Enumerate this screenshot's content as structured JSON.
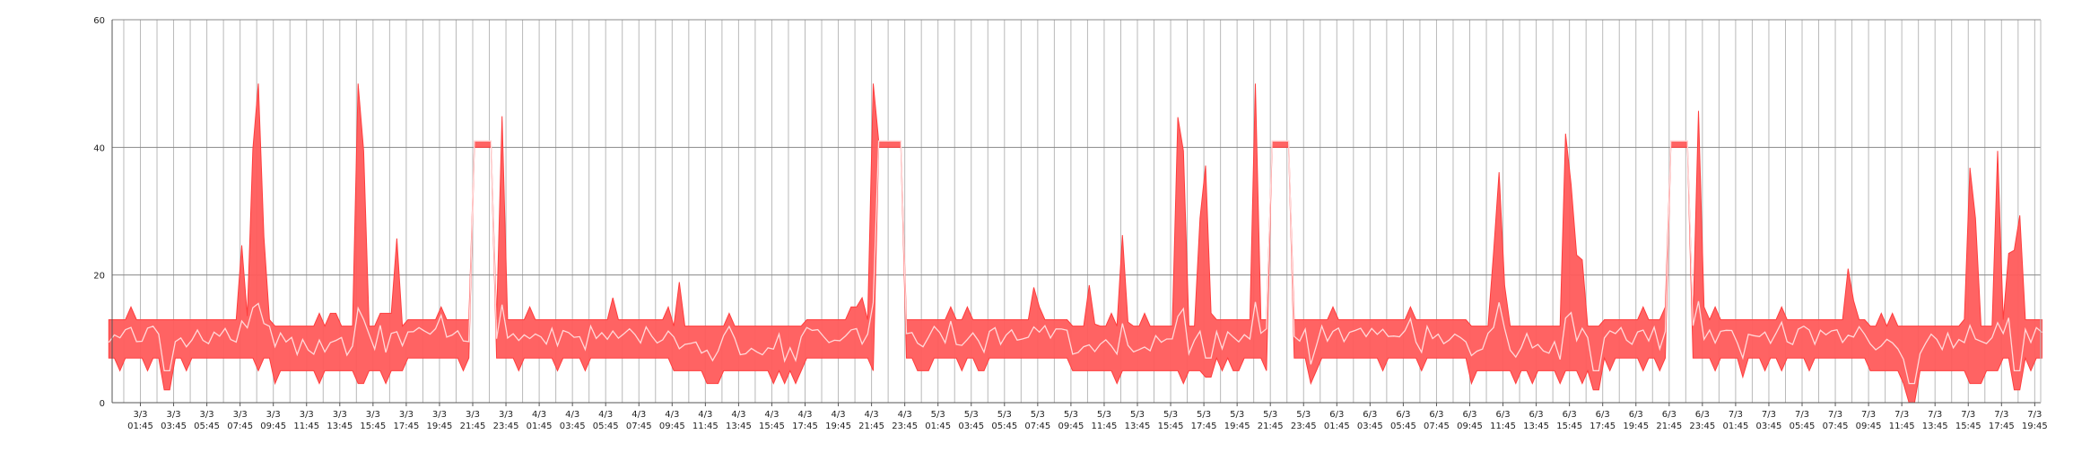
{
  "chart_data": {
    "type": "area",
    "title": "",
    "xlabel": "",
    "ylabel": "",
    "ylim": [
      0,
      60
    ],
    "y_ticks": [
      0,
      20,
      40,
      60
    ],
    "grid": "on",
    "legend": "none",
    "x_ticks": [
      {
        "date": "3/3",
        "time": "01:45"
      },
      {
        "date": "3/3",
        "time": "03:45"
      },
      {
        "date": "3/3",
        "time": "05:45"
      },
      {
        "date": "3/3",
        "time": "07:45"
      },
      {
        "date": "3/3",
        "time": "09:45"
      },
      {
        "date": "3/3",
        "time": "11:45"
      },
      {
        "date": "3/3",
        "time": "13:45"
      },
      {
        "date": "3/3",
        "time": "15:45"
      },
      {
        "date": "3/3",
        "time": "17:45"
      },
      {
        "date": "3/3",
        "time": "19:45"
      },
      {
        "date": "3/3",
        "time": "21:45"
      },
      {
        "date": "3/3",
        "time": "23:45"
      },
      {
        "date": "4/3",
        "time": "01:45"
      },
      {
        "date": "4/3",
        "time": "03:45"
      },
      {
        "date": "4/3",
        "time": "05:45"
      },
      {
        "date": "4/3",
        "time": "07:45"
      },
      {
        "date": "4/3",
        "time": "09:45"
      },
      {
        "date": "4/3",
        "time": "11:45"
      },
      {
        "date": "4/3",
        "time": "13:45"
      },
      {
        "date": "4/3",
        "time": "15:45"
      },
      {
        "date": "4/3",
        "time": "17:45"
      },
      {
        "date": "4/3",
        "time": "19:45"
      },
      {
        "date": "4/3",
        "time": "21:45"
      },
      {
        "date": "4/3",
        "time": "23:45"
      },
      {
        "date": "5/3",
        "time": "01:45"
      },
      {
        "date": "5/3",
        "time": "03:45"
      },
      {
        "date": "5/3",
        "time": "05:45"
      },
      {
        "date": "5/3",
        "time": "07:45"
      },
      {
        "date": "5/3",
        "time": "09:45"
      },
      {
        "date": "5/3",
        "time": "11:45"
      },
      {
        "date": "5/3",
        "time": "13:45"
      },
      {
        "date": "5/3",
        "time": "15:45"
      },
      {
        "date": "5/3",
        "time": "17:45"
      },
      {
        "date": "5/3",
        "time": "19:45"
      },
      {
        "date": "5/3",
        "time": "21:45"
      },
      {
        "date": "5/3",
        "time": "23:45"
      },
      {
        "date": "6/3",
        "time": "01:45"
      },
      {
        "date": "6/3",
        "time": "03:45"
      },
      {
        "date": "6/3",
        "time": "05:45"
      },
      {
        "date": "6/3",
        "time": "07:45"
      },
      {
        "date": "6/3",
        "time": "09:45"
      },
      {
        "date": "6/3",
        "time": "11:45"
      },
      {
        "date": "6/3",
        "time": "13:45"
      },
      {
        "date": "6/3",
        "time": "15:45"
      },
      {
        "date": "6/3",
        "time": "17:45"
      },
      {
        "date": "6/3",
        "time": "19:45"
      },
      {
        "date": "6/3",
        "time": "21:45"
      },
      {
        "date": "6/3",
        "time": "23:45"
      },
      {
        "date": "7/3",
        "time": "01:45"
      },
      {
        "date": "7/3",
        "time": "03:45"
      },
      {
        "date": "7/3",
        "time": "05:45"
      },
      {
        "date": "7/3",
        "time": "07:45"
      },
      {
        "date": "7/3",
        "time": "09:45"
      },
      {
        "date": "7/3",
        "time": "11:45"
      },
      {
        "date": "7/3",
        "time": "13:45"
      },
      {
        "date": "7/3",
        "time": "15:45"
      },
      {
        "date": "7/3",
        "time": "17:45"
      },
      {
        "date": "7/3",
        "time": "19:45"
      }
    ],
    "samples_per_tick": 6,
    "x_start_offset_ticks": -0.95,
    "baseline_low": 7,
    "baseline_high": 13,
    "baseline_mid": 10,
    "wide_band": {
      "low": 5,
      "high": 11
    },
    "plateaus": [
      {
        "start": 10.0,
        "end": 10.6,
        "low": 40,
        "high": 41,
        "mid": 41
      },
      {
        "start": 22.2,
        "end": 22.9,
        "low": 40,
        "high": 41,
        "mid": 41
      },
      {
        "start": 33.9,
        "end": 34.6,
        "low": 40,
        "high": 41,
        "mid": 41
      },
      {
        "start": 45.9,
        "end": 46.6,
        "low": 40,
        "high": 41,
        "mid": 41
      }
    ],
    "spikes": [
      {
        "at": 3.1,
        "high": 33
      },
      {
        "at": 3.35,
        "high": 50
      },
      {
        "at": 3.55,
        "high": 50
      },
      {
        "at": 3.75,
        "high": 31
      },
      {
        "at": 6.55,
        "high": 50
      },
      {
        "at": 6.75,
        "high": 50
      },
      {
        "at": 7.75,
        "high": 31
      },
      {
        "at": 10.9,
        "high": 50
      },
      {
        "at": 14.2,
        "high": 17
      },
      {
        "at": 16.2,
        "high": 20
      },
      {
        "at": 21.7,
        "high": 17
      },
      {
        "at": 22.05,
        "high": 50
      },
      {
        "at": 26.85,
        "high": 20
      },
      {
        "at": 28.6,
        "high": 23
      },
      {
        "at": 29.6,
        "high": 35
      },
      {
        "at": 31.2,
        "high": 50
      },
      {
        "at": 31.35,
        "high": 50
      },
      {
        "at": 31.95,
        "high": 50
      },
      {
        "at": 32.1,
        "high": 50
      },
      {
        "at": 33.55,
        "high": 50
      },
      {
        "at": 40.8,
        "high": 50
      },
      {
        "at": 40.95,
        "high": 50
      },
      {
        "at": 42.9,
        "high": 47
      },
      {
        "at": 43.1,
        "high": 50
      },
      {
        "at": 43.3,
        "high": 46
      },
      {
        "at": 46.9,
        "high": 51
      },
      {
        "at": 51.45,
        "high": 31
      },
      {
        "at": 55.0,
        "high": 50
      },
      {
        "at": 55.15,
        "high": 50
      },
      {
        "at": 55.85,
        "high": 50
      },
      {
        "at": 56.3,
        "high": 47
      },
      {
        "at": 56.5,
        "high": 41
      },
      {
        "at": 57.5,
        "high": 44
      }
    ],
    "dips": [
      {
        "at": 0.8,
        "low": 2
      },
      {
        "at": 10.2,
        "low": 5
      },
      {
        "at": 22.2,
        "low": 1
      },
      {
        "at": 32.1,
        "low": 4
      },
      {
        "at": 35.2,
        "low": 3
      },
      {
        "at": 43.8,
        "low": 2
      },
      {
        "at": 48.2,
        "low": 4
      },
      {
        "at": 53.3,
        "low": 0
      },
      {
        "at": 56.5,
        "low": 2
      }
    ],
    "colors": {
      "band_fill": "#ff5b5b",
      "band_stroke": "#ff3d3d",
      "mid_line": "#ffd9d9",
      "grid_major": "#888888",
      "grid_minor": "#b9b9b9",
      "axis": "#555555"
    }
  }
}
